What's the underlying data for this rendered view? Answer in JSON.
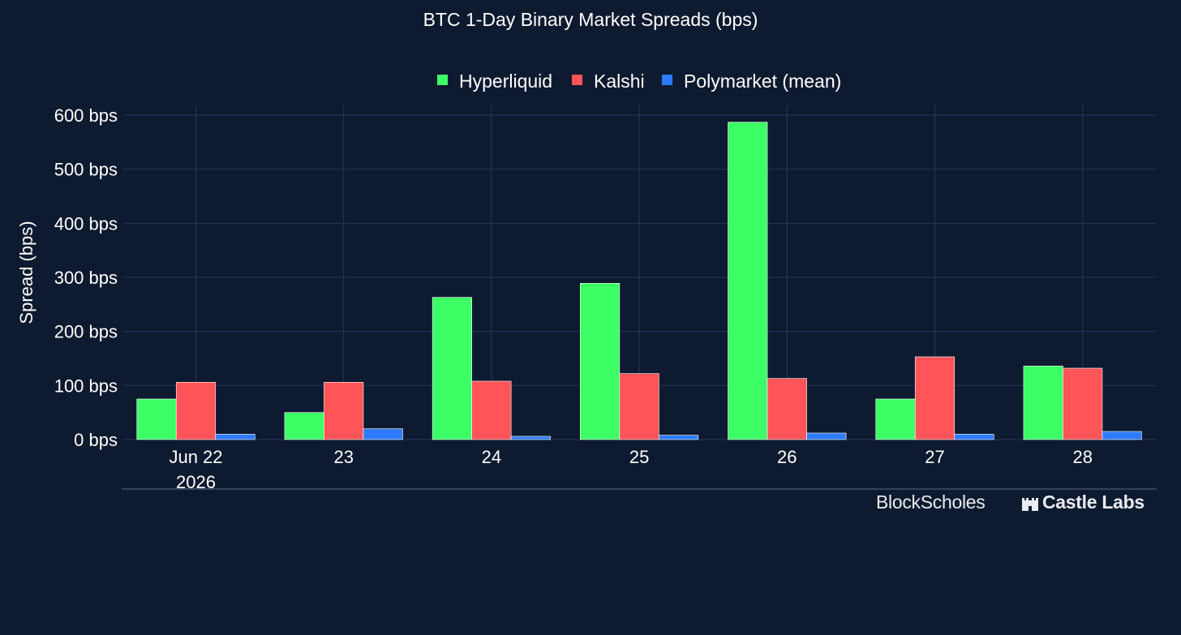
{
  "chart_data": {
    "type": "bar",
    "title": "BTC 1-Day Binary Market Spreads (bps)",
    "xlabel": "",
    "ylabel": "Spread (bps)",
    "categories": [
      "Jun 22",
      "23",
      "24",
      "25",
      "26",
      "27",
      "28"
    ],
    "year_label": "2026",
    "series": [
      {
        "name": "Hyperliquid",
        "color": "#3dff66",
        "values": [
          75,
          50,
          263,
          289,
          587,
          75,
          136
        ]
      },
      {
        "name": "Kalshi",
        "color": "#ff5458",
        "values": [
          106,
          106,
          108,
          122,
          113,
          153,
          132
        ]
      },
      {
        "name": "Polymarket (mean)",
        "color": "#2d7cff",
        "values": [
          10,
          20,
          6,
          8,
          12,
          10,
          15
        ]
      }
    ],
    "ylim": [
      0,
      600
    ],
    "yticks": [
      0,
      100,
      200,
      300,
      400,
      500,
      600
    ],
    "ytick_labels": [
      "0 bps",
      "100 bps",
      "200 bps",
      "300 bps",
      "400 bps",
      "500 bps",
      "600 bps"
    ],
    "grid": true,
    "legend_position": "top-center"
  },
  "branding": {
    "blockscholes": "BlockScholes",
    "castlelabs": "Castle Labs"
  }
}
